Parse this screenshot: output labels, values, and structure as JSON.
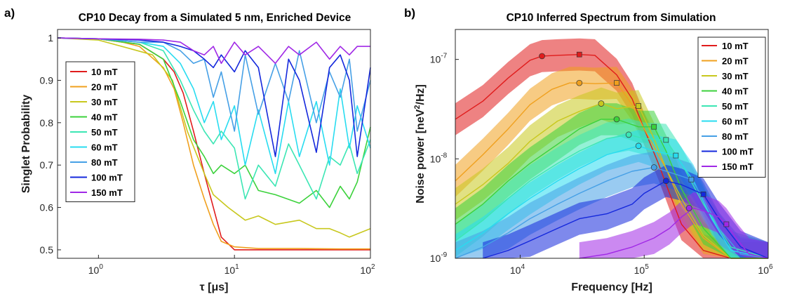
{
  "panel_labels": [
    "a)",
    "b)"
  ],
  "chart_data": [
    {
      "type": "line",
      "title": "CP10 Decay from a Simulated 5 nm, Enriched Device",
      "xlabel": "τ [μs]",
      "ylabel": "Singlet Probability",
      "xscale": "log",
      "xlim": [
        0.5,
        100
      ],
      "ylim": [
        0.48,
        1.02
      ],
      "xticks": [
        {
          "v": 1,
          "label": "10",
          "exp": "0"
        },
        {
          "v": 10,
          "label": "10",
          "exp": "1"
        },
        {
          "v": 100,
          "label": "10",
          "exp": "2"
        }
      ],
      "yticks": [
        {
          "v": 0.5,
          "label": "0.5"
        },
        {
          "v": 0.6,
          "label": "0.6"
        },
        {
          "v": 0.7,
          "label": "0.7"
        },
        {
          "v": 0.8,
          "label": "0.8"
        },
        {
          "v": 0.9,
          "label": "0.9"
        },
        {
          "v": 1,
          "label": "1"
        }
      ],
      "legend_position": "top-left",
      "series": [
        {
          "name": "10 mT",
          "color": "#e01c1c",
          "x": [
            0.5,
            1,
            1.5,
            2,
            3,
            3.6,
            4.2,
            5,
            6,
            7,
            8,
            10,
            20,
            50,
            100
          ],
          "y": [
            1,
            0.998,
            0.99,
            0.985,
            0.95,
            0.92,
            0.87,
            0.78,
            0.68,
            0.6,
            0.53,
            0.5,
            0.5,
            0.5,
            0.5
          ]
        },
        {
          "name": "20 mT",
          "color": "#f0a01e",
          "x": [
            0.5,
            1,
            1.5,
            2,
            3,
            3.6,
            4.2,
            5,
            6,
            7,
            8,
            10,
            15,
            30,
            60,
            100
          ],
          "y": [
            1,
            0.998,
            0.99,
            0.98,
            0.93,
            0.88,
            0.8,
            0.7,
            0.62,
            0.56,
            0.52,
            0.507,
            0.503,
            0.503,
            0.502,
            0.502
          ]
        },
        {
          "name": "30 mT",
          "color": "#c8c81e",
          "x": [
            0.5,
            1,
            1.7,
            2.5,
            3.5,
            4.5,
            6,
            7,
            9,
            12,
            15,
            20,
            30,
            40,
            50,
            60,
            70,
            100
          ],
          "y": [
            1,
            0.995,
            0.975,
            0.96,
            0.9,
            0.78,
            0.68,
            0.63,
            0.6,
            0.57,
            0.58,
            0.56,
            0.57,
            0.55,
            0.55,
            0.54,
            0.53,
            0.55
          ]
        },
        {
          "name": "40 mT",
          "color": "#3cd23c",
          "x": [
            0.5,
            1,
            2,
            3,
            4,
            5,
            6,
            7,
            8,
            10,
            12,
            15,
            20,
            30,
            40,
            50,
            60,
            70,
            80,
            100
          ],
          "y": [
            1,
            0.998,
            0.985,
            0.95,
            0.85,
            0.76,
            0.72,
            0.68,
            0.7,
            0.68,
            0.7,
            0.64,
            0.63,
            0.61,
            0.64,
            0.6,
            0.65,
            0.62,
            0.66,
            0.79
          ]
        },
        {
          "name": "50 mT",
          "color": "#3ce6b4",
          "x": [
            0.5,
            1,
            2,
            3,
            4,
            5,
            6,
            7,
            8,
            10,
            12,
            15,
            20,
            25,
            30,
            40,
            50,
            60,
            70,
            80,
            100
          ],
          "y": [
            1,
            0.998,
            0.99,
            0.97,
            0.9,
            0.83,
            0.78,
            0.75,
            0.78,
            0.74,
            0.62,
            0.7,
            0.65,
            0.75,
            0.7,
            0.62,
            0.72,
            0.7,
            0.75,
            0.68,
            0.76
          ]
        },
        {
          "name": "60 mT",
          "color": "#28dcf0",
          "x": [
            0.5,
            1,
            2,
            3,
            4,
            5,
            6,
            7,
            8,
            10,
            12,
            15,
            20,
            25,
            30,
            40,
            50,
            60,
            70,
            80,
            100
          ],
          "y": [
            1,
            0.998,
            0.99,
            0.98,
            0.94,
            0.88,
            0.8,
            0.85,
            0.76,
            0.84,
            0.7,
            0.83,
            0.68,
            0.85,
            0.72,
            0.85,
            0.7,
            0.88,
            0.74,
            0.84,
            0.74
          ]
        },
        {
          "name": "80 mT",
          "color": "#46a0e6",
          "x": [
            0.5,
            1,
            2,
            3,
            4,
            5,
            6,
            7,
            8,
            10,
            12,
            15,
            20,
            25,
            30,
            40,
            50,
            60,
            70,
            80,
            100
          ],
          "y": [
            1,
            0.998,
            0.99,
            0.99,
            0.97,
            0.94,
            0.95,
            0.86,
            0.92,
            0.78,
            0.96,
            0.82,
            0.94,
            0.85,
            0.97,
            0.8,
            0.92,
            0.86,
            0.95,
            0.78,
            0.9
          ]
        },
        {
          "name": "100 mT",
          "color": "#1428dc",
          "x": [
            0.5,
            1,
            2,
            3,
            4,
            5,
            6,
            7,
            8,
            10,
            12,
            15,
            20,
            25,
            30,
            40,
            50,
            60,
            70,
            80,
            100
          ],
          "y": [
            1,
            0.998,
            0.995,
            0.99,
            0.98,
            0.97,
            0.95,
            0.93,
            0.96,
            0.92,
            0.97,
            0.93,
            0.72,
            0.95,
            0.9,
            0.73,
            0.93,
            0.96,
            0.9,
            0.72,
            0.93
          ]
        },
        {
          "name": "150 mT",
          "color": "#a028e6",
          "x": [
            0.5,
            1,
            2,
            3,
            4,
            5,
            6,
            7,
            8,
            10,
            12,
            15,
            20,
            25,
            30,
            40,
            50,
            60,
            70,
            80,
            100
          ],
          "y": [
            1,
            0.998,
            0.997,
            0.995,
            0.99,
            0.97,
            0.96,
            0.98,
            0.94,
            0.99,
            0.96,
            0.98,
            0.94,
            0.98,
            0.96,
            0.99,
            0.95,
            0.98,
            0.96,
            0.98,
            0.98
          ]
        }
      ]
    },
    {
      "type": "line",
      "title": "CP10 Inferred Spectrum from Simulation",
      "xlabel": "Frequency [Hz]",
      "ylabel_prefix": "Noise power [neV",
      "ylabel_sup": "2",
      "ylabel_suffix": "/Hz]",
      "xscale": "log",
      "yscale": "log",
      "xlim": [
        3000,
        1000000
      ],
      "ylim": [
        1e-09,
        2e-07
      ],
      "xticks": [
        {
          "v": 10000,
          "label": "10",
          "exp": "4"
        },
        {
          "v": 100000,
          "label": "10",
          "exp": "5"
        },
        {
          "v": 1000000,
          "label": "10",
          "exp": "6"
        }
      ],
      "yticks": [
        {
          "v": 1e-09,
          "label": "10",
          "exp": "-9"
        },
        {
          "v": 1e-08,
          "label": "10",
          "exp": "-8"
        },
        {
          "v": 1e-07,
          "label": "10",
          "exp": "-7"
        }
      ],
      "legend_position": "top-right",
      "series": [
        {
          "name": "10 mT",
          "color": "#e01c1c",
          "x": [
            3000,
            5000,
            8000,
            12000,
            15000,
            20000,
            30000,
            40000,
            60000,
            80000,
            100000,
            130000,
            160000,
            200000,
            300000,
            500000,
            800000,
            1000000
          ],
          "y": [
            2.5e-08,
            3.8e-08,
            6.5e-08,
            9.8e-08,
            1.08e-07,
            1.1e-07,
            1.12e-07,
            1.1e-07,
            7e-08,
            4e-08,
            2e-08,
            9e-09,
            4.5e-09,
            2.2e-09,
            1.2e-09,
            1e-09,
            1e-09,
            1e-09
          ],
          "circle": {
            "x": 15000,
            "y": 1.08e-07
          },
          "square": {
            "x": 30000,
            "y": 1.12e-07
          }
        },
        {
          "name": "20 mT",
          "color": "#f0a01e",
          "x": [
            3000,
            5000,
            8000,
            12000,
            18000,
            25000,
            30000,
            40000,
            60000,
            80000,
            100000,
            150000,
            200000,
            300000,
            500000,
            1000000
          ],
          "y": [
            6e-09,
            1.1e-08,
            2e-08,
            3.5e-08,
            5e-08,
            5.8e-08,
            5.8e-08,
            5.7e-08,
            5.8e-08,
            3.5e-08,
            2e-08,
            8e-09,
            3.5e-09,
            1.6e-09,
            1e-09,
            1e-09
          ],
          "circle": {
            "x": 30000,
            "y": 5.8e-08
          },
          "square": {
            "x": 60000,
            "y": 5.8e-08
          }
        },
        {
          "name": "30 mT",
          "color": "#c8c81e",
          "x": [
            3000,
            5000,
            8000,
            12000,
            20000,
            30000,
            45000,
            60000,
            90000,
            120000,
            150000,
            200000,
            300000,
            500000,
            1000000
          ],
          "y": [
            3.5e-09,
            5.5e-09,
            9e-09,
            1.5e-08,
            2.4e-08,
            3e-08,
            3.6e-08,
            3.2e-08,
            3.4e-08,
            1.6e-08,
            8e-09,
            4e-09,
            1.7e-09,
            1e-09,
            1e-09
          ],
          "circle": {
            "x": 45000,
            "y": 3.6e-08
          },
          "square": {
            "x": 90000,
            "y": 3.4e-08
          }
        },
        {
          "name": "40 mT",
          "color": "#3cd23c",
          "x": [
            3000,
            5000,
            8000,
            12000,
            20000,
            30000,
            45000,
            60000,
            90000,
            120000,
            150000,
            200000,
            300000,
            500000,
            1000000
          ],
          "y": [
            2.2e-09,
            3.5e-09,
            6e-09,
            9e-09,
            1.4e-08,
            2e-08,
            2.5e-08,
            2.5e-08,
            2.1e-08,
            2.1e-08,
            1.2e-08,
            5e-09,
            2e-09,
            1e-09,
            1e-09
          ],
          "circle": {
            "x": 60000,
            "y": 2.5e-08
          },
          "square": {
            "x": 120000,
            "y": 2.1e-08
          }
        },
        {
          "name": "50 mT",
          "color": "#3ce6b4",
          "x": [
            3000,
            5000,
            8000,
            12000,
            20000,
            30000,
            50000,
            75000,
            100000,
            150000,
            200000,
            300000,
            500000,
            1000000
          ],
          "y": [
            1.5e-09,
            2.4e-09,
            4e-09,
            6e-09,
            9e-09,
            1.2e-08,
            1.6e-08,
            1.75e-08,
            1.6e-08,
            1.55e-08,
            9e-09,
            3.5e-09,
            1.3e-09,
            1e-09
          ],
          "circle": {
            "x": 75000,
            "y": 1.75e-08
          },
          "square": {
            "x": 150000,
            "y": 1.55e-08
          }
        },
        {
          "name": "60 mT",
          "color": "#28dcf0",
          "x": [
            3000,
            5000,
            8000,
            12000,
            20000,
            30000,
            50000,
            90000,
            120000,
            180000,
            250000,
            350000,
            500000,
            1000000
          ],
          "y": [
            1.2e-09,
            1.8e-09,
            2.8e-09,
            4e-09,
            6e-09,
            8e-09,
            1.1e-08,
            1.35e-08,
            1.2e-08,
            1.08e-08,
            6e-09,
            2.5e-09,
            1.2e-09,
            1e-09
          ],
          "circle": {
            "x": 90000,
            "y": 1.35e-08
          },
          "square": {
            "x": 180000,
            "y": 1.08e-08
          }
        },
        {
          "name": "80 mT",
          "color": "#46a0e6",
          "x": [
            3000,
            5000,
            8000,
            12000,
            20000,
            30000,
            50000,
            80000,
            120000,
            180000,
            240000,
            300000,
            400000,
            600000,
            1000000
          ],
          "y": [
            1e-09,
            1.3e-09,
            1.8e-09,
            2.5e-09,
            3.5e-09,
            4.5e-09,
            6e-09,
            7.5e-09,
            8.2e-09,
            7e-09,
            6.2e-09,
            4e-09,
            2e-09,
            1.1e-09,
            1e-09
          ],
          "circle": {
            "x": 120000,
            "y": 8.2e-09
          },
          "square": {
            "x": 240000,
            "y": 6.2e-09
          }
        },
        {
          "name": "100 mT",
          "color": "#1428dc",
          "x": [
            5000,
            8000,
            12000,
            20000,
            30000,
            50000,
            80000,
            100000,
            150000,
            200000,
            300000,
            400000,
            600000,
            1000000
          ],
          "y": [
            1e-09,
            1.2e-09,
            1.5e-09,
            2e-09,
            2.5e-09,
            2.8e-09,
            3.5e-09,
            4.5e-09,
            6e-09,
            5.5e-09,
            4.4e-09,
            2.5e-09,
            1.3e-09,
            1e-09
          ],
          "circle": {
            "x": 150000,
            "y": 6e-09
          },
          "square": {
            "x": 300000,
            "y": 4.4e-09
          }
        },
        {
          "name": "150 mT",
          "color": "#a028e6",
          "x": [
            30000,
            50000,
            80000,
            120000,
            160000,
            200000,
            250000,
            300000,
            400000,
            460000,
            550000,
            700000,
            1000000
          ],
          "y": [
            1e-09,
            1.1e-09,
            1.3e-09,
            1.6e-09,
            2e-09,
            2.6e-09,
            3.2e-09,
            3e-09,
            2.6e-09,
            2.2e-09,
            1.6e-09,
            1.1e-09,
            1e-09
          ],
          "circle": {
            "x": 230000,
            "y": 3.2e-09
          },
          "square": {
            "x": 460000,
            "y": 2.2e-09
          }
        }
      ]
    }
  ]
}
